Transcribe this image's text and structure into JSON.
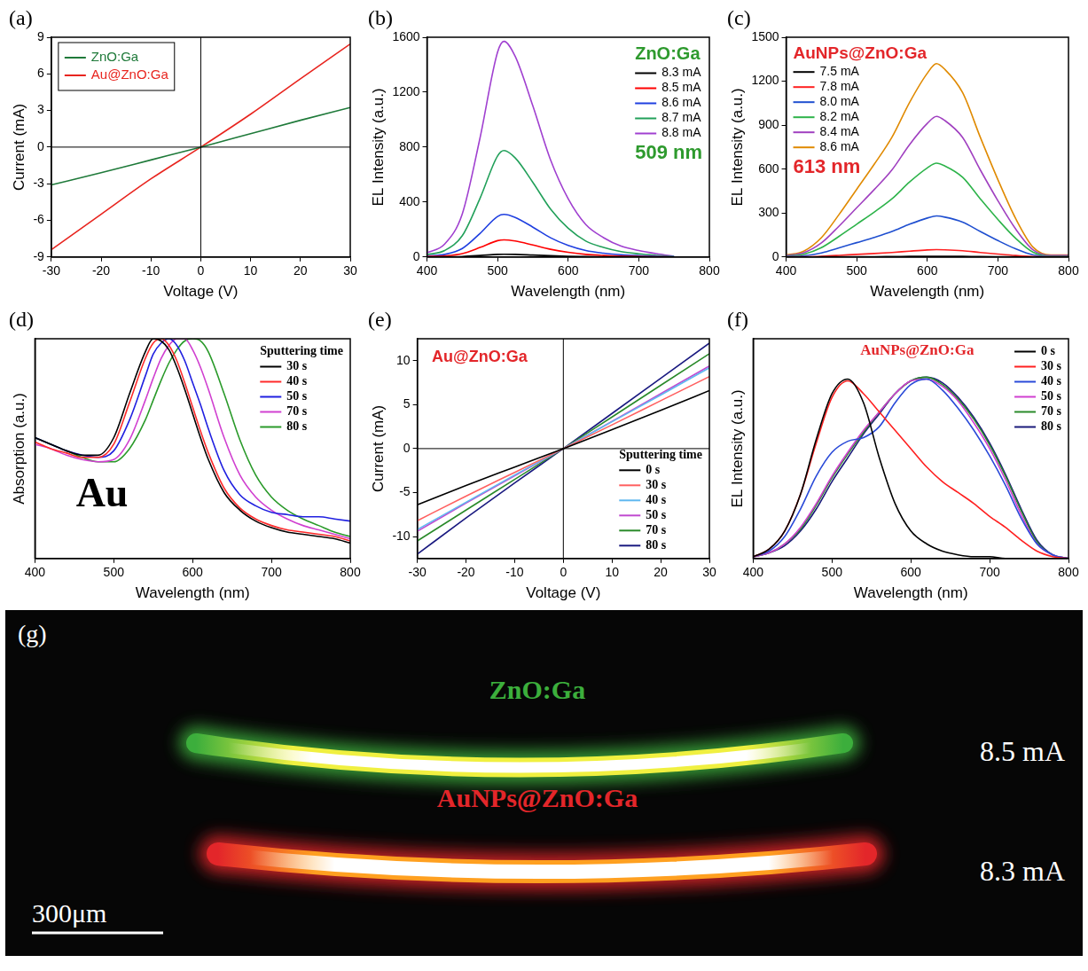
{
  "chart_data": [
    {
      "type": "line",
      "panel": "(a)",
      "x_label": "Voltage (V)",
      "y_label": "Current (mA)",
      "xlim": [
        -30,
        30
      ],
      "xticks": [
        -30,
        -20,
        -10,
        0,
        10,
        20,
        30
      ],
      "ylim": [
        -9,
        9
      ],
      "yticks": [
        -9,
        -6,
        -3,
        0,
        3,
        6,
        9
      ],
      "grid": false,
      "legend": "upper left",
      "x": [
        -30,
        -20,
        -10,
        0,
        10,
        20,
        30
      ],
      "series": [
        {
          "name": "ZnO:Ga",
          "color": "#1f7a3a",
          "values": [
            -3.1,
            -2.1,
            -1.05,
            0,
            1.1,
            2.2,
            3.25
          ]
        },
        {
          "name": "Au@ZnO:Ga",
          "color": "#e8251f",
          "values": [
            -8.4,
            -5.5,
            -2.6,
            0,
            2.7,
            5.6,
            8.45
          ]
        }
      ]
    },
    {
      "type": "line",
      "panel": "(b)",
      "x_label": "Wavelength (nm)",
      "y_label": "EL Intensity (a.u.)",
      "xlim": [
        400,
        800
      ],
      "xticks": [
        400,
        500,
        600,
        700,
        800
      ],
      "ylim": [
        0,
        1600
      ],
      "yticks": [
        0,
        400,
        800,
        1200,
        1600
      ],
      "grid": false,
      "legend": "upper right",
      "annotations": [
        {
          "text": "ZnO:Ga",
          "color": "#2e9a2e"
        },
        {
          "text": "509 nm",
          "color": "#2e9a2e"
        }
      ],
      "x": [
        400,
        425,
        450,
        475,
        500,
        509,
        525,
        550,
        575,
        600,
        625,
        650,
        675,
        700,
        725,
        750
      ],
      "series": [
        {
          "name": "8.3 mA",
          "color": "#000000",
          "values": [
            0,
            1,
            4,
            11,
            19,
            20,
            19,
            14,
            9,
            5,
            3,
            2,
            1,
            1,
            0,
            0
          ]
        },
        {
          "name": "8.5 mA",
          "color": "#ff0000",
          "values": [
            3,
            8,
            25,
            69,
            119,
            125,
            116,
            87,
            56,
            34,
            19,
            11,
            6,
            4,
            2,
            0
          ]
        },
        {
          "name": "8.6 mA",
          "color": "#1f3fe0",
          "values": [
            6,
            19,
            62,
            171,
            295,
            310,
            288,
            217,
            140,
            84,
            47,
            28,
            16,
            9,
            5,
            1
          ]
        },
        {
          "name": "8.7 mA",
          "color": "#22a05a",
          "values": [
            16,
            47,
            155,
            426,
            736,
            775,
            721,
            543,
            349,
            209,
            116,
            70,
            39,
            23,
            12,
            3
          ]
        },
        {
          "name": "8.8 mA",
          "color": "#a040d0",
          "values": [
            31,
            94,
            314,
            864,
            1492,
            1570,
            1460,
            1099,
            707,
            424,
            236,
            141,
            79,
            47,
            24,
            5
          ]
        }
      ]
    },
    {
      "type": "line",
      "panel": "(c)",
      "x_label": "Wavelength (nm)",
      "y_label": "EL Intensity (a.u.)",
      "xlim": [
        400,
        800
      ],
      "xticks": [
        400,
        500,
        600,
        700,
        800
      ],
      "ylim": [
        0,
        1500
      ],
      "yticks": [
        0,
        300,
        600,
        900,
        1200,
        1500
      ],
      "grid": false,
      "legend": "upper left",
      "annotations": [
        {
          "text": "AuNPs@ZnO:Ga",
          "color": "#e3262a"
        },
        {
          "text": "613 nm",
          "color": "#e3262a"
        }
      ],
      "x": [
        400,
        425,
        450,
        475,
        500,
        525,
        550,
        575,
        600,
        613,
        625,
        650,
        675,
        700,
        725,
        750,
        775,
        800
      ],
      "series": [
        {
          "name": "7.5 mA",
          "color": "#000000",
          "values": [
            0,
            0,
            1,
            1,
            2,
            2,
            3,
            4,
            5,
            5,
            5,
            4,
            3,
            2,
            1,
            0,
            0,
            0
          ]
        },
        {
          "name": "7.8 mA",
          "color": "#ff2020",
          "values": [
            1,
            2,
            5,
            11,
            18,
            24,
            31,
            40,
            48,
            50,
            49,
            43,
            31,
            20,
            10,
            3,
            1,
            1
          ]
        },
        {
          "name": "8.0 mA",
          "color": "#1f4fd0",
          "values": [
            3,
            8,
            28,
            62,
            98,
            134,
            174,
            224,
            266,
            280,
            272,
            238,
            174,
            112,
            56,
            14,
            3,
            3
          ]
        },
        {
          "name": "8.2 mA",
          "color": "#2db34a",
          "values": [
            6,
            19,
            64,
            141,
            224,
            307,
            397,
            512,
            608,
            640,
            621,
            544,
            397,
            256,
            128,
            32,
            6,
            6
          ]
        },
        {
          "name": "8.4 mA",
          "color": "#a040c0",
          "values": [
            10,
            29,
            96,
            211,
            336,
            461,
            595,
            768,
            912,
            960,
            931,
            816,
            595,
            384,
            192,
            48,
            10,
            10
          ]
        },
        {
          "name": "8.6 mA",
          "color": "#e08a00",
          "values": [
            13,
            40,
            132,
            290,
            462,
            634,
            818,
            1056,
            1254,
            1320,
            1280,
            1122,
            818,
            528,
            264,
            66,
            13,
            13
          ]
        }
      ]
    },
    {
      "type": "line",
      "panel": "(d)",
      "x_label": "Wavelength (nm)",
      "y_label": "Absorption (a.u.)",
      "xlim": [
        400,
        800
      ],
      "xticks": [
        400,
        500,
        600,
        700,
        800
      ],
      "ylim": [
        0,
        1
      ],
      "tick_labels": "x",
      "grid": false,
      "legend": "upper right",
      "legend_title": "Sputtering time",
      "annotations": [
        {
          "text": "Au",
          "color": "#000000"
        }
      ],
      "x": [
        400,
        420,
        440,
        460,
        480,
        500,
        520,
        540,
        550,
        560,
        570,
        580,
        590,
        600,
        610,
        620,
        640,
        660,
        680,
        700,
        720,
        740,
        760,
        780,
        800
      ],
      "series": [
        {
          "name": "30 s",
          "color": "#000000",
          "values": [
            0.55,
            0.52,
            0.49,
            0.47,
            0.47,
            0.55,
            0.75,
            0.94,
            1.0,
            0.99,
            0.95,
            0.87,
            0.77,
            0.66,
            0.55,
            0.45,
            0.3,
            0.22,
            0.17,
            0.14,
            0.12,
            0.11,
            0.1,
            0.09,
            0.07
          ]
        },
        {
          "name": "40 s",
          "color": "#ff2a2a",
          "values": [
            0.53,
            0.5,
            0.48,
            0.46,
            0.46,
            0.52,
            0.71,
            0.91,
            0.98,
            1.0,
            0.97,
            0.9,
            0.8,
            0.69,
            0.58,
            0.48,
            0.32,
            0.23,
            0.18,
            0.15,
            0.13,
            0.12,
            0.11,
            0.1,
            0.08
          ]
        },
        {
          "name": "50 s",
          "color": "#2020e0",
          "values": [
            0.55,
            0.52,
            0.49,
            0.47,
            0.46,
            0.49,
            0.63,
            0.83,
            0.93,
            0.98,
            1.0,
            0.97,
            0.9,
            0.8,
            0.7,
            0.59,
            0.4,
            0.29,
            0.24,
            0.21,
            0.2,
            0.19,
            0.19,
            0.18,
            0.17
          ]
        },
        {
          "name": "70 s",
          "color": "#d040d0",
          "values": [
            0.52,
            0.5,
            0.47,
            0.45,
            0.44,
            0.45,
            0.54,
            0.72,
            0.82,
            0.91,
            0.97,
            1.0,
            1.0,
            0.95,
            0.87,
            0.77,
            0.55,
            0.38,
            0.28,
            0.22,
            0.18,
            0.15,
            0.13,
            0.11,
            0.09
          ]
        },
        {
          "name": "80 s",
          "color": "#2a9a2a",
          "values": [
            0.55,
            0.52,
            0.49,
            0.46,
            0.44,
            0.44,
            0.5,
            0.63,
            0.72,
            0.81,
            0.89,
            0.95,
            0.99,
            1.0,
            0.99,
            0.94,
            0.75,
            0.54,
            0.38,
            0.28,
            0.22,
            0.18,
            0.15,
            0.12,
            0.1
          ]
        }
      ]
    },
    {
      "type": "line",
      "panel": "(e)",
      "x_label": "Voltage (V)",
      "y_label": "Current (mA)",
      "xlim": [
        -30,
        30
      ],
      "xticks": [
        -30,
        -20,
        -10,
        0,
        10,
        20,
        30
      ],
      "ylim": [
        -12.5,
        12.5
      ],
      "yticks": [
        -10,
        -5,
        0,
        5,
        10
      ],
      "grid": false,
      "legend": "lower right",
      "legend_title": "Sputtering time",
      "annotations": [
        {
          "text": "Au@ZnO:Ga",
          "color": "#e3262a"
        }
      ],
      "x": [
        -30,
        -20,
        -10,
        0,
        10,
        20,
        30
      ],
      "series": [
        {
          "name": "0 s",
          "color": "#000000",
          "values": [
            -6.4,
            -4.2,
            -2.1,
            0,
            2.15,
            4.35,
            6.6
          ]
        },
        {
          "name": "30 s",
          "color": "#ff6060",
          "values": [
            -8.2,
            -5.4,
            -2.7,
            0,
            2.7,
            5.45,
            8.2
          ]
        },
        {
          "name": "40 s",
          "color": "#5fb8f0",
          "values": [
            -9.2,
            -6.1,
            -3.0,
            0,
            3.05,
            6.1,
            9.2
          ]
        },
        {
          "name": "50 s",
          "color": "#c04ad0",
          "values": [
            -9.4,
            -6.2,
            -3.1,
            0,
            3.1,
            6.25,
            9.4
          ]
        },
        {
          "name": "70 s",
          "color": "#2a8a2a",
          "values": [
            -10.5,
            -7.0,
            -3.5,
            0,
            3.6,
            7.2,
            10.8
          ]
        },
        {
          "name": "80 s",
          "color": "#1a1a80",
          "values": [
            -12.0,
            -7.9,
            -3.9,
            0,
            4.0,
            8.0,
            12.0
          ]
        }
      ]
    },
    {
      "type": "line",
      "panel": "(f)",
      "x_label": "Wavelength (nm)",
      "y_label": "EL Intensity (a.u.)",
      "xlim": [
        400,
        800
      ],
      "xticks": [
        400,
        500,
        600,
        700,
        800
      ],
      "ylim": [
        0,
        1.2
      ],
      "tick_labels": "x",
      "grid": false,
      "legend": "upper right",
      "annotations": [
        {
          "text": "AuNPs@ZnO:Ga",
          "color": "#e3262a"
        }
      ],
      "x": [
        400,
        420,
        440,
        460,
        480,
        500,
        520,
        540,
        560,
        580,
        600,
        620,
        640,
        660,
        680,
        700,
        720,
        740,
        760,
        780,
        800
      ],
      "series": [
        {
          "name": "0 s",
          "color": "#000000",
          "values": [
            0.01,
            0.05,
            0.15,
            0.35,
            0.65,
            0.9,
            0.98,
            0.85,
            0.55,
            0.3,
            0.15,
            0.08,
            0.04,
            0.02,
            0.01,
            0.01,
            0,
            0,
            0,
            0,
            0
          ]
        },
        {
          "name": "30 s",
          "color": "#ff2020",
          "values": [
            0.01,
            0.05,
            0.15,
            0.35,
            0.63,
            0.88,
            0.97,
            0.9,
            0.8,
            0.7,
            0.6,
            0.5,
            0.42,
            0.36,
            0.3,
            0.23,
            0.17,
            0.1,
            0.04,
            0.01,
            0
          ]
        },
        {
          "name": "40 s",
          "color": "#2a4ad8",
          "values": [
            0.01,
            0.04,
            0.12,
            0.27,
            0.45,
            0.58,
            0.64,
            0.66,
            0.72,
            0.85,
            0.95,
            0.98,
            0.92,
            0.82,
            0.7,
            0.56,
            0.4,
            0.22,
            0.08,
            0.02,
            0
          ]
        },
        {
          "name": "50 s",
          "color": "#d040d0",
          "values": [
            0.01,
            0.03,
            0.08,
            0.17,
            0.3,
            0.45,
            0.58,
            0.7,
            0.8,
            0.9,
            0.97,
            0.98,
            0.94,
            0.86,
            0.74,
            0.6,
            0.43,
            0.24,
            0.08,
            0.02,
            0
          ]
        },
        {
          "name": "70 s",
          "color": "#2a8a2a",
          "values": [
            0.01,
            0.03,
            0.08,
            0.16,
            0.29,
            0.44,
            0.57,
            0.69,
            0.8,
            0.9,
            0.97,
            0.99,
            0.95,
            0.87,
            0.76,
            0.62,
            0.45,
            0.26,
            0.09,
            0.02,
            0
          ]
        },
        {
          "name": "80 s",
          "color": "#1a1a7a",
          "values": [
            0.01,
            0.03,
            0.07,
            0.15,
            0.27,
            0.42,
            0.55,
            0.68,
            0.79,
            0.9,
            0.97,
            0.99,
            0.96,
            0.88,
            0.77,
            0.63,
            0.46,
            0.27,
            0.1,
            0.02,
            0
          ]
        }
      ]
    }
  ],
  "photo": {
    "panel": "(g)",
    "scale_bar": "300μm",
    "rods": [
      {
        "label": "ZnO:Ga",
        "current": "8.5 mA",
        "color": "#3cae3c"
      },
      {
        "label": "AuNPs@ZnO:Ga",
        "current": "8.3 mA",
        "color": "#e3262a"
      }
    ]
  }
}
